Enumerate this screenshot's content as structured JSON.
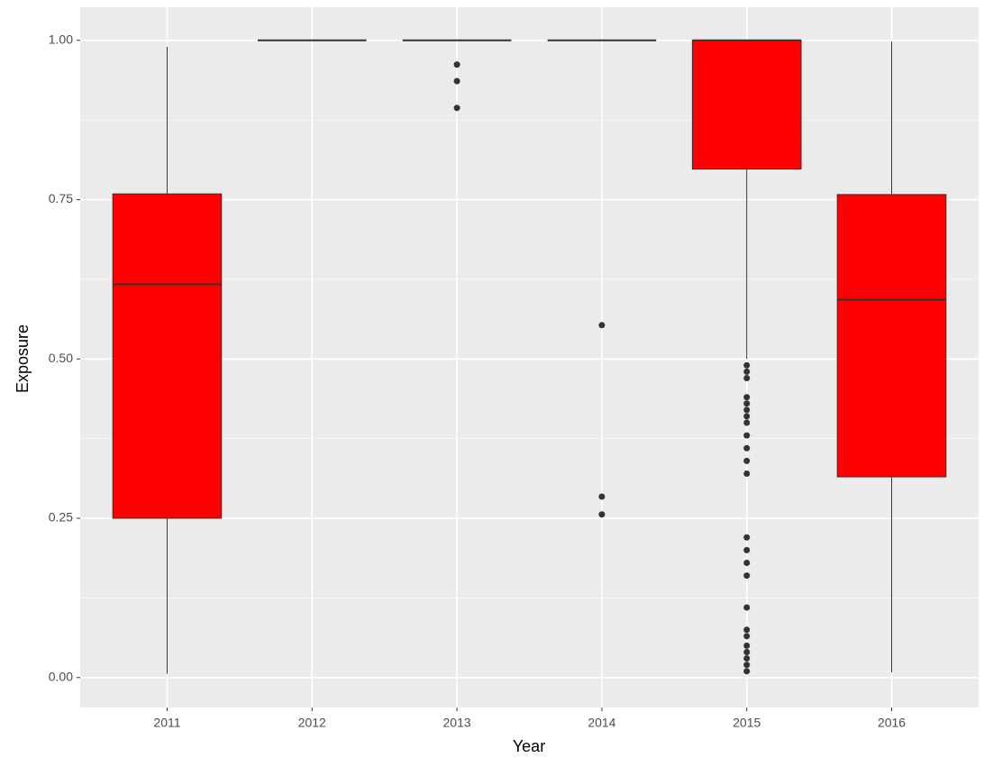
{
  "chart_data": {
    "type": "boxplot",
    "x_label": "Year",
    "y_label": "Exposure",
    "categories": [
      "2011",
      "2012",
      "2013",
      "2014",
      "2015",
      "2016"
    ],
    "color": "#ff0000",
    "boxes": [
      {
        "min": 0.006,
        "q1": 0.25,
        "median": 0.617,
        "q3": 0.759,
        "max": 0.99,
        "outliers": []
      },
      {
        "min": 1,
        "q1": 1,
        "median": 1,
        "q3": 1,
        "max": 1,
        "outliers": []
      },
      {
        "min": 1,
        "q1": 1,
        "median": 1,
        "q3": 1,
        "max": 1,
        "outliers": [
          0.962,
          0.936,
          0.894
        ]
      },
      {
        "min": 1,
        "q1": 1,
        "median": 1,
        "q3": 1,
        "max": 1,
        "outliers": [
          0.553,
          0.284,
          0.256
        ]
      },
      {
        "min": 0.5,
        "q1": 0.798,
        "median": 1,
        "q3": 1,
        "max": 1,
        "outliers": [
          0.49,
          0.48,
          0.47,
          0.44,
          0.43,
          0.42,
          0.41,
          0.4,
          0.38,
          0.36,
          0.34,
          0.32,
          0.22,
          0.2,
          0.18,
          0.16,
          0.11,
          0.075,
          0.065,
          0.05,
          0.04,
          0.03,
          0.02,
          0.01
        ]
      },
      {
        "min": 0.008,
        "q1": 0.315,
        "median": 0.593,
        "q3": 0.758,
        "max": 0.998,
        "outliers": []
      }
    ],
    "ylim": [
      -0.047,
      1.052
    ],
    "yticks": [
      {
        "value": 0,
        "label": "0.00"
      },
      0.25,
      {
        "value": 0.5,
        "label": "0.50"
      },
      0.75,
      {
        "value": 1,
        "label": "1.00"
      }
    ],
    "grid": true
  }
}
